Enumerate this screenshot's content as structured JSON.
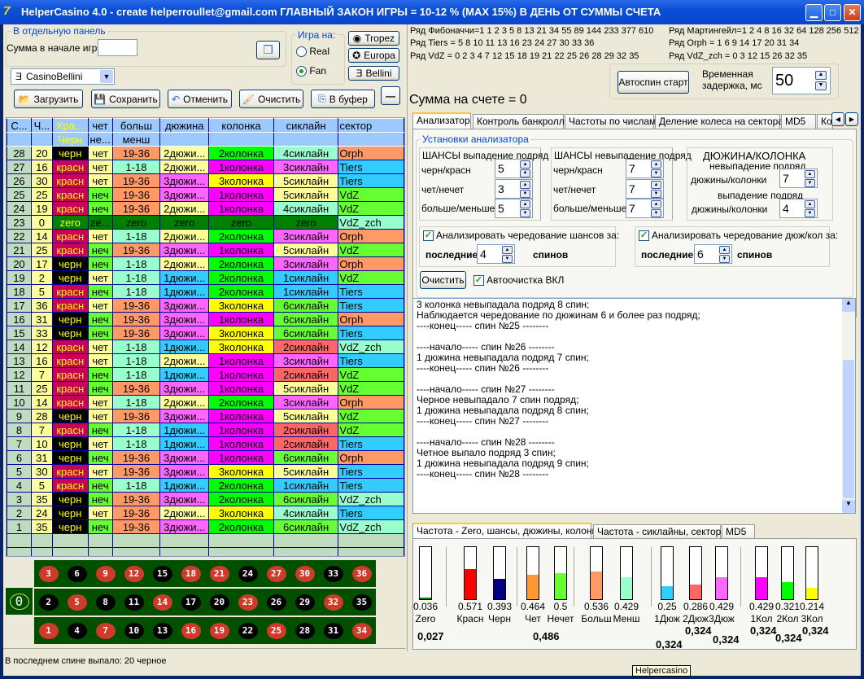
{
  "window": {
    "title": "HelperCasino 4.0 - create helperroullet@gmail.com ГЛАВНЫЙ ЗАКОН ИГРЫ = 10-12 % (MAX 15%) В ДЕНЬ ОТ СУММЫ СЧЕТА"
  },
  "panel": {
    "group_title": "В отдельную панель",
    "start_sum_label": "Сумма в начале игры",
    "start_sum_value": ""
  },
  "play_mode": {
    "title": "Игра на:",
    "options": [
      "Real",
      "Fan"
    ],
    "selected": "Fan"
  },
  "casinos": [
    "Tropez",
    "Europa",
    "Bellini"
  ],
  "casino_select": "CasinoBellini",
  "toolbar": {
    "load": "Загрузить",
    "save": "Сохранить",
    "undo": "Отменить",
    "clear": "Очистить",
    "copy": "В буфер",
    "minus": "—"
  },
  "grid": {
    "headers": [
      [
        "С...",
        "Ч...",
        "Кра...",
        "чет",
        "больш",
        "дюжина",
        "колонка",
        "сиклайн",
        "сектор"
      ],
      [
        "",
        "",
        "Черн",
        "не...",
        "менш",
        "",
        "",
        "",
        ""
      ]
    ],
    "rows": [
      [
        28,
        20,
        "черн",
        "чет",
        "19-36",
        "2дюжи...",
        "2колонка",
        "4сиклайн",
        "Orph"
      ],
      [
        27,
        16,
        "красн",
        "чет",
        "1-18",
        "2дюжи...",
        "1колонка",
        "3сиклайн",
        "Tiers"
      ],
      [
        26,
        30,
        "красн",
        "чет",
        "19-36",
        "3дюжи...",
        "3колонка",
        "5сиклайн",
        "Tiers"
      ],
      [
        25,
        25,
        "красн",
        "неч",
        "19-36",
        "3дюжи...",
        "1колонка",
        "5сиклайн",
        "VdZ"
      ],
      [
        24,
        19,
        "красн",
        "неч",
        "19-36",
        "2дюжи...",
        "1колонка",
        "4сиклайн",
        "VdZ"
      ],
      [
        23,
        0,
        "zero",
        "ze...",
        "zero",
        "zero",
        "zero",
        "zero",
        "VdZ_zch"
      ],
      [
        22,
        14,
        "красн",
        "чет",
        "1-18",
        "2дюжи...",
        "2колонка",
        "3сиклайн",
        "Orph"
      ],
      [
        21,
        25,
        "красн",
        "неч",
        "19-36",
        "3дюжи...",
        "1колонка",
        "5сиклайн",
        "VdZ"
      ],
      [
        20,
        17,
        "черн",
        "неч",
        "1-18",
        "2дюжи...",
        "2колонка",
        "3сиклайн",
        "Orph"
      ],
      [
        19,
        2,
        "черн",
        "чет",
        "1-18",
        "1дюжи...",
        "2колонка",
        "1сиклайн",
        "VdZ"
      ],
      [
        18,
        5,
        "красн",
        "неч",
        "1-18",
        "1дюжи...",
        "2колонка",
        "1сиклайн",
        "Tiers"
      ],
      [
        17,
        36,
        "красн",
        "чет",
        "19-36",
        "3дюжи...",
        "3колонка",
        "6сиклайн",
        "Tiers"
      ],
      [
        16,
        31,
        "черн",
        "неч",
        "19-36",
        "3дюжи...",
        "1колонка",
        "6сиклайн",
        "Orph"
      ],
      [
        15,
        33,
        "черн",
        "неч",
        "19-36",
        "3дюжи...",
        "3колонка",
        "6сиклайн",
        "Tiers"
      ],
      [
        14,
        12,
        "красн",
        "чет",
        "1-18",
        "1дюжи...",
        "3колонка",
        "2сиклайн",
        "VdZ_zch"
      ],
      [
        13,
        16,
        "красн",
        "чет",
        "1-18",
        "2дюжи...",
        "1колонка",
        "3сиклайн",
        "Tiers"
      ],
      [
        12,
        7,
        "красн",
        "неч",
        "1-18",
        "1дюжи...",
        "1колонка",
        "2сиклайн",
        "VdZ"
      ],
      [
        11,
        25,
        "красн",
        "неч",
        "19-36",
        "3дюжи...",
        "1колонка",
        "5сиклайн",
        "VdZ"
      ],
      [
        10,
        14,
        "красн",
        "чет",
        "1-18",
        "2дюжи...",
        "2колонка",
        "3сиклайн",
        "Orph"
      ],
      [
        9,
        28,
        "черн",
        "чет",
        "19-36",
        "3дюжи...",
        "1колонка",
        "5сиклайн",
        "VdZ"
      ],
      [
        8,
        7,
        "красн",
        "неч",
        "1-18",
        "1дюжи...",
        "1колонка",
        "2сиклайн",
        "VdZ"
      ],
      [
        7,
        10,
        "черн",
        "чет",
        "1-18",
        "1дюжи...",
        "1колонка",
        "2сиклайн",
        "Tiers"
      ],
      [
        6,
        31,
        "черн",
        "неч",
        "19-36",
        "3дюжи...",
        "1колонка",
        "6сиклайн",
        "Orph"
      ],
      [
        5,
        30,
        "красн",
        "чет",
        "19-36",
        "3дюжи...",
        "3колонка",
        "5сиклайн",
        "Tiers"
      ],
      [
        4,
        5,
        "красн",
        "неч",
        "1-18",
        "1дюжи...",
        "2колонка",
        "1сиклайн",
        "Tiers"
      ],
      [
        3,
        35,
        "черн",
        "неч",
        "19-36",
        "3дюжи...",
        "2колонка",
        "6сиклайн",
        "VdZ_zch"
      ],
      [
        2,
        24,
        "черн",
        "чет",
        "19-36",
        "2дюжи...",
        "3колонка",
        "4сиклайн",
        "Tiers"
      ],
      [
        1,
        35,
        "черн",
        "неч",
        "19-36",
        "3дюжи...",
        "2колонка",
        "6сиклайн",
        "VdZ_zch"
      ]
    ]
  },
  "roulette": {
    "zero": "0",
    "rows": [
      [
        3,
        6,
        9,
        12,
        15,
        18,
        21,
        24,
        27,
        30,
        33,
        36
      ],
      [
        2,
        5,
        8,
        11,
        14,
        17,
        20,
        23,
        26,
        29,
        32,
        35
      ],
      [
        1,
        4,
        7,
        10,
        13,
        16,
        19,
        22,
        25,
        28,
        31,
        34
      ]
    ],
    "red": [
      1,
      3,
      5,
      7,
      9,
      12,
      14,
      16,
      18,
      19,
      21,
      23,
      25,
      27,
      30,
      32,
      34,
      36
    ]
  },
  "status": "В последнем спине выпало: 20 черное",
  "tooltip": "Helpercasino",
  "series": {
    "fib": "Ряд Фибоначчи=1 1 2 3 5 8 13 21 34 55 89 144 233 377 610",
    "mart": "Ряд Мартингейл=1 2 4 8 16 32 64 128 256 512",
    "tiers": "Ряд Tiers = 5 8 10 11 13 16 23 24 27 30 33 36",
    "orph": "Ряд Orph = 1 6 9 14 17 20 31 34",
    "vdz": "Ряд VdZ = 0 2 3 4 7 12 15 18 19 21 22 25 26 28 29 32 35",
    "vdzzch": "Ряд VdZ_zch = 0 3 12 15 26 32 35"
  },
  "autospin": {
    "button": "Автоспин старт",
    "delay_label1": "Временная",
    "delay_label2": "задержка, мс",
    "delay": "50"
  },
  "balance": "Сумма на счете = 0",
  "tabs": [
    "Анализатор",
    "Контроль банкролла",
    "Частоты по числам",
    "Деление колеса на сектора",
    "MD5",
    "Ко"
  ],
  "analyzer": {
    "group": "Установки анализатора",
    "hit_title": "ШАНСЫ выпадение подряд",
    "miss_title": "ШАНСЫ невыпадение подряд",
    "labels": [
      "черн/красн",
      "чет/нечет",
      "больше/меньше"
    ],
    "hit_values": [
      "5",
      "3",
      "5"
    ],
    "miss_values": [
      "7",
      "7",
      "7"
    ],
    "dc_title": "ДЮЖИНА/КОЛОНКА",
    "dc_miss": "невыпадение подряд",
    "dc_hit": "выпадение подряд",
    "dc_label": "дюжины/колонки",
    "dc_miss_value": "7",
    "dc_hit_value": "4",
    "alt_chances": "Анализировать чередование шансов за:",
    "alt_dc": "Анализировать чередование дюж/кол за:",
    "last": "последние",
    "spins": "спинов",
    "alt_chances_value": "4",
    "alt_dc_value": "6",
    "clear": "Очистить",
    "autoclear": "Автоочистка ВКЛ"
  },
  "log": [
    "3 колонка невыпадала подряд 8 спин;",
    "Наблюдается чередование по дюжинам 6 и более раз подряд;",
    "----конец----- спин №25 --------",
    "",
    "----начало----- спин №26 --------",
    "1 дюжина невыпадала подряд 7 спин;",
    "----конец----- спин №26 --------",
    "",
    "----начало----- спин №27 --------",
    "Черное невыпадало 7 спин подряд;",
    "1 дюжина невыпадала подряд 8 спин;",
    "----конец----- спин №27 --------",
    "",
    "----начало----- спин №28 --------",
    "Четное выпало подряд 3 спин;",
    "1 дюжина невыпадала подряд 9 спин;",
    "----конец----- спин №28 --------"
  ],
  "freq_tabs": [
    "Частота - Zero, шансы, дюжины, колонки",
    "Частота - сиклайны, сектора",
    "MD5"
  ],
  "freq": [
    {
      "name": "Zero",
      "value": 0.036,
      "color": "#008000"
    },
    {
      "name": "Красн",
      "value": 0.571,
      "color": "#ff0000"
    },
    {
      "name": "Черн",
      "value": 0.393,
      "color": "#000080"
    },
    {
      "name": "Чет",
      "value": 0.464,
      "color": "#ff9933"
    },
    {
      "name": "Нечет",
      "value": 0.5,
      "color": "#66ff33"
    },
    {
      "name": "Больш",
      "value": 0.536,
      "color": "#ff9966"
    },
    {
      "name": "Менш",
      "value": 0.429,
      "color": "#99ffcc"
    },
    {
      "name": "1Дюж",
      "value": 0.25,
      "color": "#33ccff"
    },
    {
      "name": "2Дюж",
      "value": 0.286,
      "color": "#ff6666"
    },
    {
      "name": "3Дюж",
      "value": 0.429,
      "color": "#ff66ff"
    },
    {
      "name": "1Кол",
      "value": 0.429,
      "color": "#ff00ff"
    },
    {
      "name": "2Кол",
      "value": 0.321,
      "color": "#00ff00"
    },
    {
      "name": "3Кол",
      "value": 0.214,
      "color": "#ffff00"
    }
  ],
  "freq_totals": [
    "0,027",
    "0,486",
    "0,324",
    "0,324",
    "0,324",
    "0,324",
    "0,324",
    "0,324"
  ]
}
